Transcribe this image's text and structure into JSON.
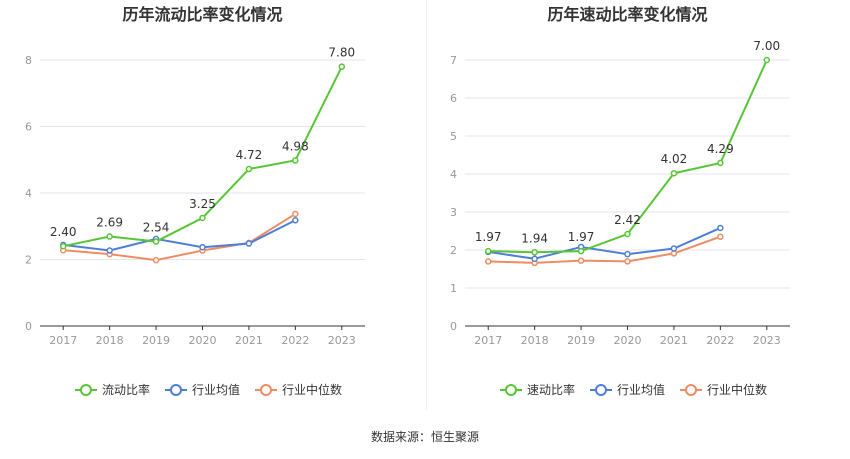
{
  "source_text": "数据来源：恒生聚源",
  "legend_labels": {
    "company": "",
    "industry_avg": "行业均值",
    "industry_median": "行业中位数"
  },
  "colors": {
    "company": "#58c536",
    "industry_avg": "#4e7fd8",
    "industry_median": "#ef8c62",
    "grid": "#e3e6f0",
    "axis": "#333333",
    "tick": "#999999",
    "label": "#333333"
  },
  "chart_data": [
    {
      "type": "line",
      "title": "历年流动比率变化情况",
      "categories": [
        "2017",
        "2018",
        "2019",
        "2020",
        "2021",
        "2022",
        "2023"
      ],
      "ylim": [
        0,
        8
      ],
      "yticks": [
        0,
        2,
        4,
        6,
        8
      ],
      "grid": true,
      "legend": "bottom",
      "series": [
        {
          "name": "流动比率",
          "key": "company",
          "values": [
            2.4,
            2.69,
            2.54,
            3.25,
            4.72,
            4.98,
            7.8
          ],
          "labels": [
            "2.40",
            "2.69",
            "2.54",
            "3.25",
            "4.72",
            "4.98",
            "7.80"
          ]
        },
        {
          "name": "行业均值",
          "key": "industry_avg",
          "values": [
            2.44,
            2.27,
            2.62,
            2.37,
            2.48,
            3.18,
            null
          ]
        },
        {
          "name": "行业中位数",
          "key": "industry_median",
          "values": [
            2.28,
            2.16,
            1.98,
            2.27,
            2.5,
            3.37,
            null
          ]
        }
      ]
    },
    {
      "type": "line",
      "title": "历年速动比率变化情况",
      "categories": [
        "2017",
        "2018",
        "2019",
        "2020",
        "2021",
        "2022",
        "2023"
      ],
      "ylim": [
        0,
        7
      ],
      "yticks": [
        0,
        1,
        2,
        3,
        4,
        5,
        6,
        7
      ],
      "grid": true,
      "legend": "bottom",
      "series": [
        {
          "name": "速动比率",
          "key": "company",
          "values": [
            1.97,
            1.94,
            1.97,
            2.42,
            4.02,
            4.29,
            7.0
          ],
          "labels": [
            "1.97",
            "1.94",
            "1.97",
            "2.42",
            "4.02",
            "4.29",
            "7.00"
          ]
        },
        {
          "name": "行业均值",
          "key": "industry_avg",
          "values": [
            1.95,
            1.77,
            2.08,
            1.89,
            2.04,
            2.58,
            null
          ]
        },
        {
          "name": "行业中位数",
          "key": "industry_median",
          "values": [
            1.7,
            1.66,
            1.72,
            1.7,
            1.91,
            2.35,
            null
          ]
        }
      ]
    }
  ]
}
